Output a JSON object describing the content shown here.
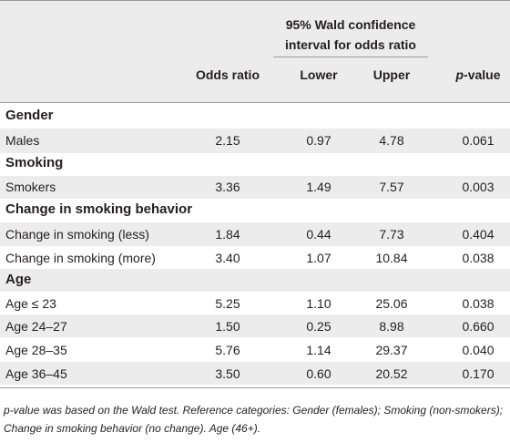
{
  "header": {
    "group_title": "95% Wald confidence interval for odds ratio",
    "col_or": "Odds ratio",
    "col_lower": "Lower",
    "col_upper": "Upper",
    "col_p_italic": "p",
    "col_p_rest": "-value"
  },
  "sections": [
    {
      "title": "Gender",
      "rows": [
        {
          "label": "Males",
          "or": "2.15",
          "lower": "0.97",
          "upper": "4.78",
          "p": "0.061"
        }
      ]
    },
    {
      "title": "Smoking",
      "rows": [
        {
          "label": "Smokers",
          "or": "3.36",
          "lower": "1.49",
          "upper": "7.57",
          "p": "0.003"
        }
      ]
    },
    {
      "title": "Change in smoking behavior",
      "rows": [
        {
          "label": "Change in smoking (less)",
          "or": "1.84",
          "lower": "0.44",
          "upper": "7.73",
          "p": "0.404"
        },
        {
          "label": "Change in smoking (more)",
          "or": "3.40",
          "lower": "1.07",
          "upper": "10.84",
          "p": "0.038"
        }
      ]
    },
    {
      "title": "Age",
      "rows": [
        {
          "label": "Age ≤ 23",
          "or": "5.25",
          "lower": "1.10",
          "upper": "25.06",
          "p": "0.038"
        },
        {
          "label": "Age 24–27",
          "or": "1.50",
          "lower": "0.25",
          "upper": "8.98",
          "p": "0.660"
        },
        {
          "label": "Age 28–35",
          "or": "5.76",
          "lower": "1.14",
          "upper": "29.37",
          "p": "0.040"
        },
        {
          "label": "Age 36–45",
          "or": "3.50",
          "lower": "0.60",
          "upper": "20.52",
          "p": "0.170"
        }
      ]
    }
  ],
  "footnote": {
    "p_italic": "p",
    "text": "-value was based on the Wald test. Reference categories: Gender (females); Smoking (non-smokers); Change in smoking behavior (no change). Age (46+)."
  },
  "colors": {
    "shade": "#ececec",
    "rule": "#9a9a9a",
    "text": "#231f20"
  }
}
